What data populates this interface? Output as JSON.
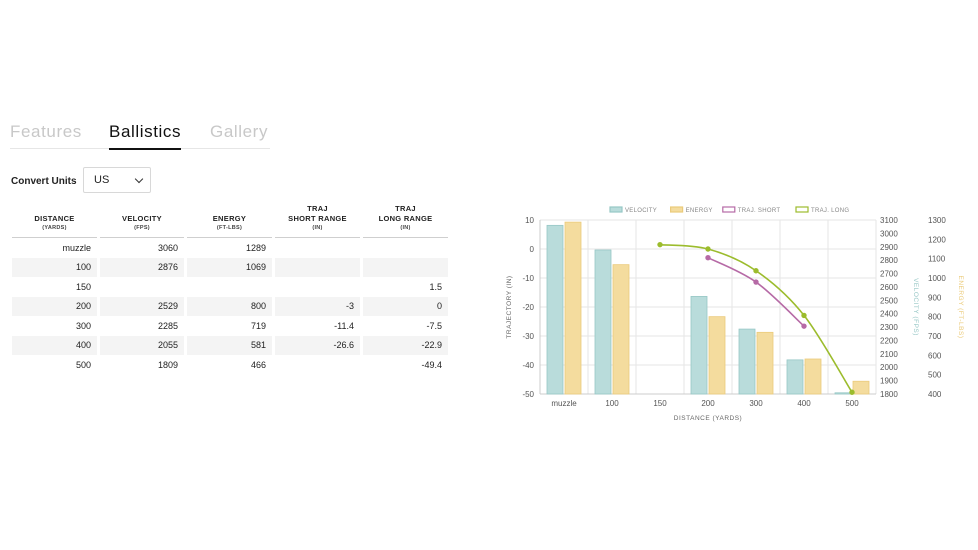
{
  "tabs": [
    {
      "label": "Features",
      "active": false
    },
    {
      "label": "Ballistics",
      "active": true
    },
    {
      "label": "Gallery",
      "active": false
    }
  ],
  "convert_units": {
    "label": "Convert Units",
    "selected": "US"
  },
  "table": {
    "headers": [
      {
        "title": "DISTANCE",
        "title2": "",
        "unit": "(YARDS)"
      },
      {
        "title": "VELOCITY",
        "title2": "",
        "unit": "(FPS)"
      },
      {
        "title": "ENERGY",
        "title2": "",
        "unit": "(FT-LBS)"
      },
      {
        "title": "TRAJ",
        "title2": "SHORT RANGE",
        "unit": "(IN)"
      },
      {
        "title": "TRAJ",
        "title2": "LONG RANGE",
        "unit": "(IN)"
      }
    ],
    "rows": [
      [
        "muzzle",
        "3060",
        "1289",
        "",
        ""
      ],
      [
        "100",
        "2876",
        "1069",
        "",
        ""
      ],
      [
        "150",
        "",
        "",
        "",
        "1.5"
      ],
      [
        "200",
        "2529",
        "800",
        "-3",
        "0"
      ],
      [
        "300",
        "2285",
        "719",
        "-11.4",
        "-7.5"
      ],
      [
        "400",
        "2055",
        "581",
        "-26.6",
        "-22.9"
      ],
      [
        "500",
        "1809",
        "466",
        "",
        "-49.4"
      ]
    ]
  },
  "chart_data": {
    "type": "bar",
    "categories": [
      "muzzle",
      "100",
      "150",
      "200",
      "300",
      "400",
      "500"
    ],
    "xlabel": "DISTANCE (YARDS)",
    "axes": {
      "left": {
        "label": "TRAJECTORY (IN)",
        "range": [
          -50,
          10
        ],
        "ticks": [
          10,
          0,
          -10,
          -20,
          -30,
          -40,
          -50
        ]
      },
      "velocity": {
        "label": "VELOCITY (FPS)",
        "range": [
          1800,
          3100
        ],
        "ticks": [
          3100,
          3000,
          2900,
          2800,
          2700,
          2600,
          2500,
          2400,
          2300,
          2200,
          2100,
          2000,
          1900,
          1800
        ]
      },
      "energy": {
        "label": "ENERGY (FT-LBS)",
        "range": [
          400,
          1300
        ],
        "ticks": [
          1300,
          1200,
          1100,
          1000,
          900,
          800,
          700,
          600,
          500,
          400
        ]
      }
    },
    "legend_position": "top",
    "grid": true,
    "series": [
      {
        "name": "VELOCITY",
        "kind": "bar",
        "axis": "velocity",
        "color": "#b9dcdb",
        "stroke": "#97c7c6",
        "values": [
          3060,
          2876,
          null,
          2529,
          2285,
          2055,
          1809
        ]
      },
      {
        "name": "ENERGY",
        "kind": "bar",
        "axis": "energy",
        "color": "#f4dc9e",
        "stroke": "#ebcb7b",
        "values": [
          1289,
          1069,
          null,
          800,
          719,
          581,
          466
        ]
      },
      {
        "name": "TRAJ. SHORT",
        "kind": "line",
        "axis": "left",
        "color": "#b66aa6",
        "values": [
          null,
          null,
          null,
          -3,
          -11.4,
          -26.6,
          null
        ]
      },
      {
        "name": "TRAJ. LONG",
        "kind": "line",
        "axis": "left",
        "color": "#9cbc2d",
        "values": [
          null,
          null,
          1.5,
          0,
          -7.5,
          -22.9,
          -49.4
        ]
      }
    ]
  }
}
